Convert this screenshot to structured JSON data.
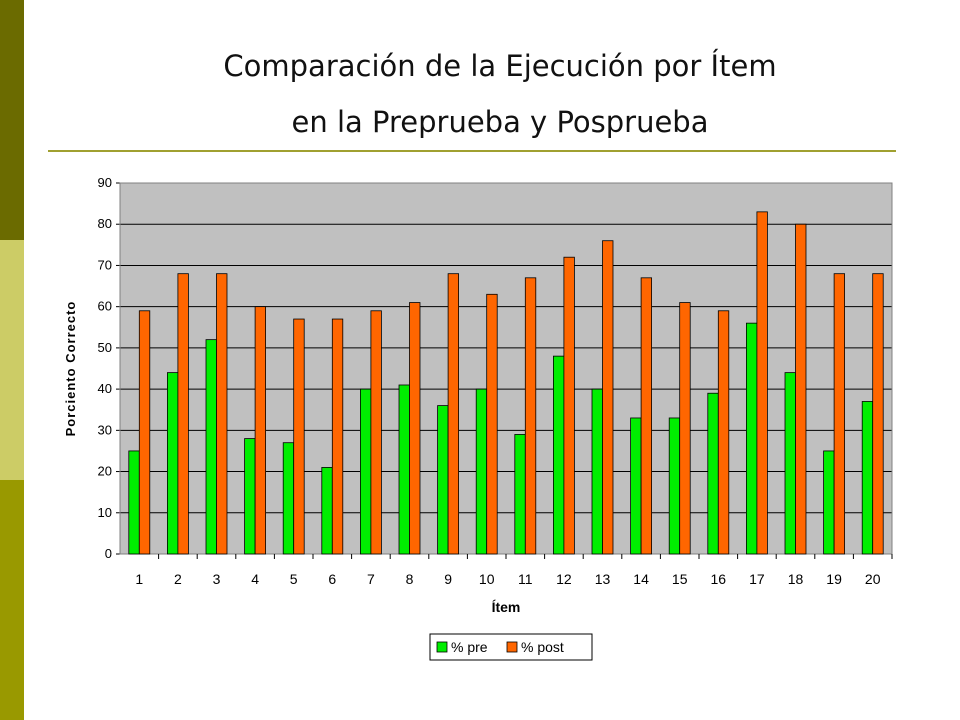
{
  "colors": {
    "bar_dark": "#6b6b00",
    "bar_light": "#cccc66",
    "bar_mid": "#999900",
    "rule": "#a0a030",
    "plot_bg": "#c0c0c0",
    "pre": "#00ee00",
    "post": "#ff6600"
  },
  "page": {
    "title_line1": "Comparación de la Ejecución por Ítem",
    "title_line2": "en la Preprueba y Posprueba"
  },
  "chart_data": {
    "type": "bar",
    "title": "",
    "xlabel": "Ítem",
    "ylabel": "Porciento Correcto",
    "ylim": [
      0,
      90
    ],
    "yticks": [
      0,
      10,
      20,
      30,
      40,
      50,
      60,
      70,
      80,
      90
    ],
    "grid": true,
    "legend_position": "bottom-center",
    "categories": [
      "1",
      "2",
      "3",
      "4",
      "5",
      "6",
      "7",
      "8",
      "9",
      "10",
      "11",
      "12",
      "13",
      "14",
      "15",
      "16",
      "17",
      "18",
      "19",
      "20"
    ],
    "series": [
      {
        "name": "% pre",
        "color": "#00ee00",
        "values": [
          25,
          44,
          52,
          28,
          27,
          21,
          40,
          41,
          36,
          40,
          29,
          48,
          40,
          33,
          33,
          39,
          56,
          44,
          25,
          37
        ]
      },
      {
        "name": "% post",
        "color": "#ff6600",
        "values": [
          59,
          68,
          68,
          60,
          57,
          57,
          59,
          61,
          68,
          63,
          67,
          72,
          76,
          67,
          61,
          59,
          83,
          80,
          68,
          68
        ]
      }
    ]
  }
}
